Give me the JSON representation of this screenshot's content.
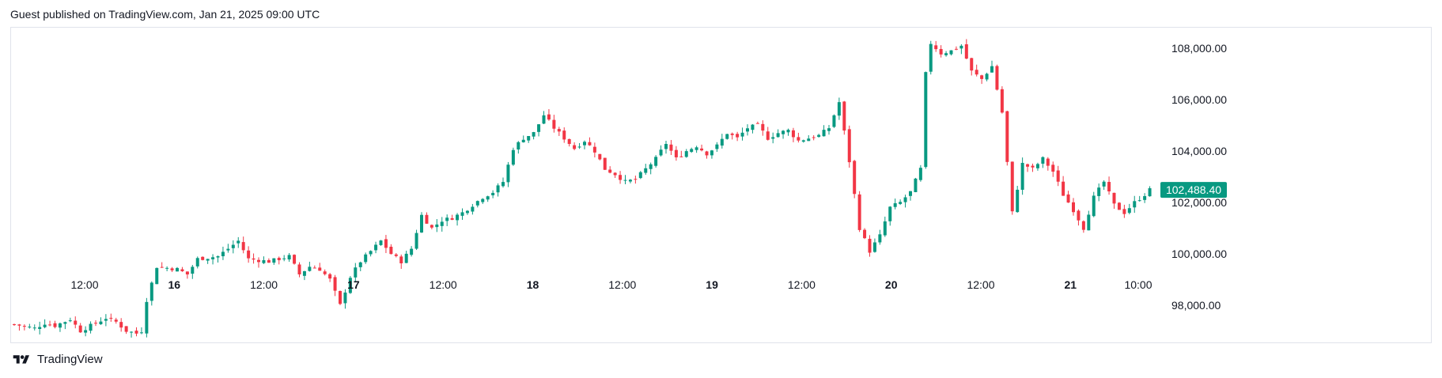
{
  "header": {
    "text": "Guest published on TradingView.com, Jan 21, 2025 09:00 UTC"
  },
  "footer": {
    "brand": "TradingView",
    "logo_icon": "tradingview-logo-icon"
  },
  "colors": {
    "up": "#089981",
    "down": "#f23645",
    "last_price_bg": "#089981",
    "border": "#e0e3eb"
  },
  "chart_data": {
    "type": "candlestick",
    "title": "",
    "xlabel": "",
    "ylabel": "",
    "x_ticks": [
      {
        "label": "12:00",
        "bold": false
      },
      {
        "label": "16",
        "bold": true
      },
      {
        "label": "12:00",
        "bold": false
      },
      {
        "label": "17",
        "bold": true
      },
      {
        "label": "12:00",
        "bold": false
      },
      {
        "label": "18",
        "bold": true
      },
      {
        "label": "12:00",
        "bold": false
      },
      {
        "label": "19",
        "bold": true
      },
      {
        "label": "12:00",
        "bold": false
      },
      {
        "label": "20",
        "bold": true
      },
      {
        "label": "12:00",
        "bold": false
      },
      {
        "label": "21",
        "bold": true
      },
      {
        "label": "10:00",
        "bold": false
      }
    ],
    "y_ticks": [
      "108,000.00",
      "106,000.00",
      "104,000.00",
      "102,000.00",
      "100,000.00",
      "98,000.00"
    ],
    "y_tick_values": [
      108000,
      106000,
      104000,
      102000,
      100000,
      98000
    ],
    "ylim": [
      96550,
      108800
    ],
    "last_price": 102488.4,
    "last_price_label": "102,488.40",
    "close_path": [
      [
        0,
        97250
      ],
      [
        4,
        97100
      ],
      [
        6,
        97300
      ],
      [
        8,
        97200
      ],
      [
        11,
        97450
      ],
      [
        13,
        97000
      ],
      [
        16,
        97300
      ],
      [
        18,
        97500
      ],
      [
        20,
        97350
      ],
      [
        22,
        97000
      ],
      [
        24,
        96900
      ],
      [
        25,
        97000
      ],
      [
        26,
        98200
      ],
      [
        28,
        99500
      ],
      [
        32,
        99400
      ],
      [
        34,
        99200
      ],
      [
        36,
        99800
      ],
      [
        40,
        99900
      ],
      [
        44,
        100500
      ],
      [
        46,
        99800
      ],
      [
        50,
        99700
      ],
      [
        54,
        99900
      ],
      [
        56,
        99200
      ],
      [
        58,
        99500
      ],
      [
        60,
        99400
      ],
      [
        62,
        99000
      ],
      [
        64,
        98000
      ],
      [
        66,
        99100
      ],
      [
        68,
        99700
      ],
      [
        70,
        100100
      ],
      [
        72,
        100500
      ],
      [
        74,
        100000
      ],
      [
        76,
        99700
      ],
      [
        78,
        100200
      ],
      [
        80,
        101500
      ],
      [
        82,
        101000
      ],
      [
        84,
        101300
      ],
      [
        86,
        101400
      ],
      [
        88,
        101600
      ],
      [
        90,
        101900
      ],
      [
        92,
        102200
      ],
      [
        94,
        102400
      ],
      [
        96,
        102800
      ],
      [
        98,
        104100
      ],
      [
        100,
        104500
      ],
      [
        102,
        104700
      ],
      [
        104,
        105400
      ],
      [
        106,
        104900
      ],
      [
        108,
        104500
      ],
      [
        110,
        104100
      ],
      [
        112,
        104400
      ],
      [
        114,
        104000
      ],
      [
        116,
        103300
      ],
      [
        118,
        103100
      ],
      [
        120,
        102800
      ],
      [
        122,
        102900
      ],
      [
        124,
        103300
      ],
      [
        126,
        103700
      ],
      [
        128,
        104300
      ],
      [
        130,
        103700
      ],
      [
        132,
        104000
      ],
      [
        134,
        104200
      ],
      [
        136,
        103900
      ],
      [
        138,
        104200
      ],
      [
        140,
        104700
      ],
      [
        142,
        104500
      ],
      [
        144,
        104900
      ],
      [
        146,
        105000
      ],
      [
        148,
        104500
      ],
      [
        150,
        104700
      ],
      [
        152,
        104800
      ],
      [
        154,
        104400
      ],
      [
        156,
        104500
      ],
      [
        158,
        104600
      ],
      [
        160,
        104900
      ],
      [
        162,
        105900
      ],
      [
        164,
        103600
      ],
      [
        166,
        101000
      ],
      [
        168,
        100100
      ],
      [
        170,
        100700
      ],
      [
        172,
        101800
      ],
      [
        174,
        102000
      ],
      [
        176,
        102400
      ],
      [
        178,
        103300
      ],
      [
        179,
        107000
      ],
      [
        180,
        108200
      ],
      [
        182,
        107800
      ],
      [
        184,
        107900
      ],
      [
        186,
        108100
      ],
      [
        188,
        107100
      ],
      [
        190,
        106800
      ],
      [
        192,
        107300
      ],
      [
        194,
        105500
      ],
      [
        196,
        101600
      ],
      [
        198,
        103500
      ],
      [
        200,
        103300
      ],
      [
        202,
        103700
      ],
      [
        204,
        103200
      ],
      [
        206,
        102300
      ],
      [
        208,
        101700
      ],
      [
        210,
        101000
      ],
      [
        212,
        102200
      ],
      [
        214,
        102800
      ],
      [
        216,
        101900
      ],
      [
        218,
        101600
      ],
      [
        220,
        102000
      ],
      [
        222,
        102300
      ],
      [
        223,
        102488.4
      ]
    ]
  }
}
